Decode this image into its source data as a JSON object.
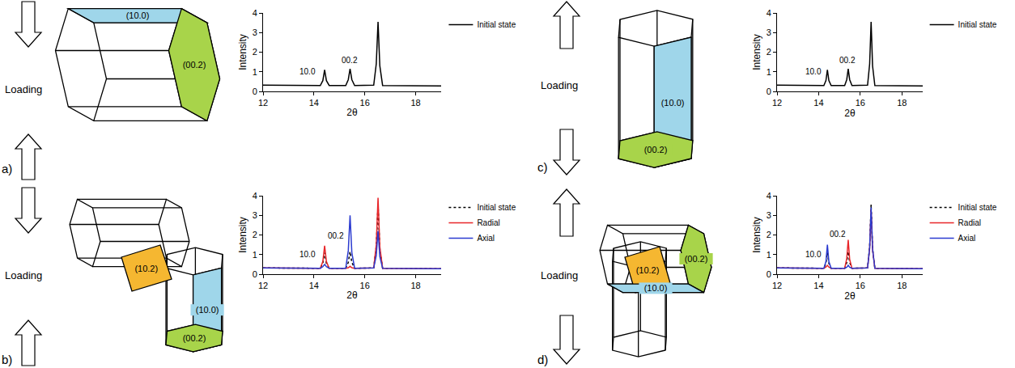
{
  "chart_data": [
    {
      "type": "line",
      "xlabel": "2θ",
      "ylabel": "Intensity",
      "x": [
        12,
        14.25,
        14.35,
        14.42,
        14.49,
        14.6,
        15.25,
        15.35,
        15.42,
        15.49,
        15.6,
        16.35,
        16.45,
        16.52,
        16.59,
        16.7,
        19
      ],
      "series": [
        {
          "name": "Initial state",
          "color": "#000000",
          "line_style": "solid",
          "values": [
            0.32,
            0.3,
            0.55,
            1.1,
            0.55,
            0.3,
            0.3,
            0.6,
            1.15,
            0.6,
            0.3,
            0.32,
            1.4,
            3.55,
            1.3,
            0.3,
            0.28
          ]
        }
      ],
      "annotations": [
        {
          "text": "10.0",
          "x": 13.75,
          "y": 1.0
        },
        {
          "text": "00.2",
          "x": 15.4,
          "y": 1.6
        }
      ],
      "xlim": [
        12,
        19
      ],
      "xticks": [
        12,
        14,
        16,
        18
      ],
      "ylim": [
        0,
        4
      ],
      "yticks": [
        0,
        1,
        2,
        3,
        4
      ],
      "grid": false,
      "legend": "right"
    },
    {
      "type": "line",
      "xlabel": "2θ",
      "ylabel": "Intensity",
      "x": [
        12,
        14.25,
        14.35,
        14.42,
        14.49,
        14.6,
        15.25,
        15.35,
        15.42,
        15.49,
        15.6,
        16.35,
        16.45,
        16.52,
        16.59,
        16.7,
        19
      ],
      "series": [
        {
          "name": "Initial state",
          "color": "#000000",
          "line_style": "dotted",
          "values": [
            0.32,
            0.3,
            0.55,
            1.1,
            0.55,
            0.3,
            0.3,
            0.6,
            1.15,
            0.6,
            0.3,
            0.32,
            1.4,
            3.55,
            1.3,
            0.3,
            0.28
          ]
        },
        {
          "name": "Radial",
          "color": "#e8262a",
          "line_style": "solid",
          "values": [
            0.32,
            0.3,
            0.65,
            1.45,
            0.65,
            0.3,
            0.3,
            0.33,
            0.4,
            0.33,
            0.3,
            0.32,
            1.5,
            3.9,
            1.4,
            0.3,
            0.28
          ]
        },
        {
          "name": "Axial",
          "color": "#2b3bd0",
          "line_style": "solid",
          "values": [
            0.32,
            0.3,
            0.38,
            0.5,
            0.38,
            0.3,
            0.3,
            1.2,
            3.0,
            1.1,
            0.3,
            0.32,
            0.95,
            2.2,
            0.9,
            0.3,
            0.28
          ]
        }
      ],
      "annotations": [
        {
          "text": "10.0",
          "x": 13.75,
          "y": 1.0
        },
        {
          "text": "00.2",
          "x": 14.85,
          "y": 1.95
        }
      ],
      "xlim": [
        12,
        19
      ],
      "xticks": [
        12,
        14,
        16,
        18
      ],
      "ylim": [
        0,
        4
      ],
      "yticks": [
        0,
        1,
        2,
        3,
        4
      ],
      "grid": false,
      "legend": "right"
    },
    {
      "type": "line",
      "xlabel": "2θ",
      "ylabel": "Intensity",
      "x": [
        12,
        14.25,
        14.35,
        14.42,
        14.49,
        14.6,
        15.25,
        15.35,
        15.42,
        15.49,
        15.6,
        16.35,
        16.45,
        16.52,
        16.59,
        16.7,
        19
      ],
      "series": [
        {
          "name": "Initial state",
          "color": "#000000",
          "line_style": "solid",
          "values": [
            0.32,
            0.3,
            0.55,
            1.1,
            0.55,
            0.3,
            0.3,
            0.6,
            1.15,
            0.6,
            0.3,
            0.32,
            1.4,
            3.55,
            1.3,
            0.3,
            0.28
          ]
        }
      ],
      "annotations": [
        {
          "text": "10.0",
          "x": 13.75,
          "y": 1.0
        },
        {
          "text": "00.2",
          "x": 15.4,
          "y": 1.6
        }
      ],
      "xlim": [
        12,
        19
      ],
      "xticks": [
        12,
        14,
        16,
        18
      ],
      "ylim": [
        0,
        4
      ],
      "yticks": [
        0,
        1,
        2,
        3,
        4
      ],
      "grid": false,
      "legend": "right"
    },
    {
      "type": "line",
      "xlabel": "2θ",
      "ylabel": "Intensity",
      "x": [
        12,
        14.25,
        14.35,
        14.42,
        14.49,
        14.6,
        15.25,
        15.35,
        15.42,
        15.49,
        15.6,
        16.35,
        16.45,
        16.52,
        16.59,
        16.7,
        19
      ],
      "series": [
        {
          "name": "Initial state",
          "color": "#000000",
          "line_style": "dotted",
          "values": [
            0.32,
            0.3,
            0.55,
            1.1,
            0.55,
            0.3,
            0.3,
            0.6,
            1.15,
            0.6,
            0.3,
            0.32,
            1.4,
            3.55,
            1.3,
            0.3,
            0.28
          ]
        },
        {
          "name": "Radial",
          "color": "#e8262a",
          "line_style": "solid",
          "values": [
            0.32,
            0.3,
            0.36,
            0.45,
            0.36,
            0.3,
            0.3,
            0.8,
            1.75,
            0.75,
            0.3,
            0.32,
            1.3,
            3.3,
            1.25,
            0.3,
            0.28
          ]
        },
        {
          "name": "Axial",
          "color": "#2b3bd0",
          "line_style": "solid",
          "values": [
            0.32,
            0.3,
            0.65,
            1.5,
            0.65,
            0.3,
            0.3,
            0.35,
            0.45,
            0.35,
            0.3,
            0.32,
            1.35,
            3.4,
            1.3,
            0.3,
            0.28
          ]
        }
      ],
      "annotations": [
        {
          "text": "10.0",
          "x": 13.75,
          "y": 1.0
        },
        {
          "text": "00.2",
          "x": 14.9,
          "y": 2.05
        }
      ],
      "xlim": [
        12,
        19
      ],
      "xticks": [
        12,
        14,
        16,
        18
      ],
      "ylim": [
        0,
        4
      ],
      "yticks": [
        0,
        1,
        2,
        3,
        4
      ],
      "grid": false,
      "legend": "right"
    }
  ],
  "diagrams": [
    {
      "letter": "a)",
      "loading": "Loading",
      "faces": [
        {
          "label": "(10.0)",
          "color": "#9fd6ea"
        },
        {
          "label": "(00.2)",
          "color": "#a8d44a"
        }
      ]
    },
    {
      "letter": "b)",
      "loading": "Loading",
      "faces": [
        {
          "label": "(10.2)",
          "color": "#f5b731"
        },
        {
          "label": "(10.0)",
          "color": "#9fd6ea"
        },
        {
          "label": "(00.2)",
          "color": "#a8d44a"
        }
      ]
    },
    {
      "letter": "c)",
      "loading": "Loading",
      "faces": [
        {
          "label": "(10.0)",
          "color": "#9fd6ea"
        },
        {
          "label": "(00.2)",
          "color": "#a8d44a"
        }
      ]
    },
    {
      "letter": "d)",
      "loading": "Loading",
      "faces": [
        {
          "label": "(10.2)",
          "color": "#f5b731"
        },
        {
          "label": "(00.2)",
          "color": "#a8d44a"
        },
        {
          "label": "(10.0)",
          "color": "#9fd6ea"
        }
      ]
    }
  ]
}
